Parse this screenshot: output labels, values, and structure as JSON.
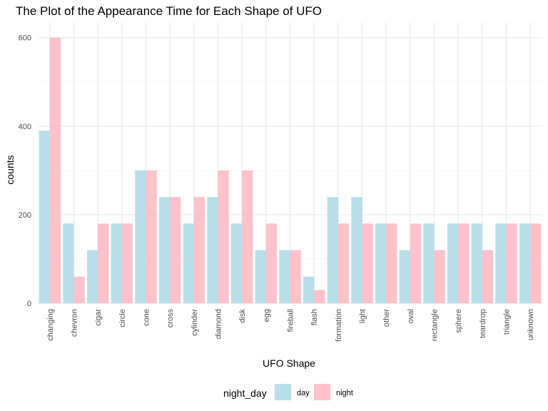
{
  "chart_data": {
    "type": "bar",
    "title": "The Plot of the Appearance Time for Each Shape of UFO",
    "xlabel": "UFO Shape",
    "ylabel": "counts",
    "ylim": [
      0,
      635
    ],
    "yticks": [
      0,
      200,
      400,
      600
    ],
    "grid": true,
    "legend_title": "night_day",
    "legend_position": "bottom",
    "categories": [
      "changing",
      "chevron",
      "cigar",
      "circle",
      "cone",
      "cross",
      "cylinder",
      "diamond",
      "disk",
      "egg",
      "fireball",
      "flash",
      "formation",
      "light",
      "other",
      "oval",
      "rectangle",
      "sphere",
      "teardrop",
      "triangle",
      "unknown"
    ],
    "series": [
      {
        "name": "day",
        "color": "#add8e6",
        "values": [
          390,
          180,
          120,
          180,
          300,
          240,
          180,
          240,
          180,
          120,
          120,
          60,
          240,
          240,
          180,
          120,
          180,
          180,
          180,
          180,
          180
        ]
      },
      {
        "name": "night",
        "color": "#ffb6c1",
        "values": [
          600,
          60,
          180,
          180,
          300,
          240,
          240,
          300,
          300,
          180,
          120,
          30,
          180,
          180,
          180,
          180,
          120,
          180,
          120,
          180,
          180
        ]
      }
    ]
  }
}
